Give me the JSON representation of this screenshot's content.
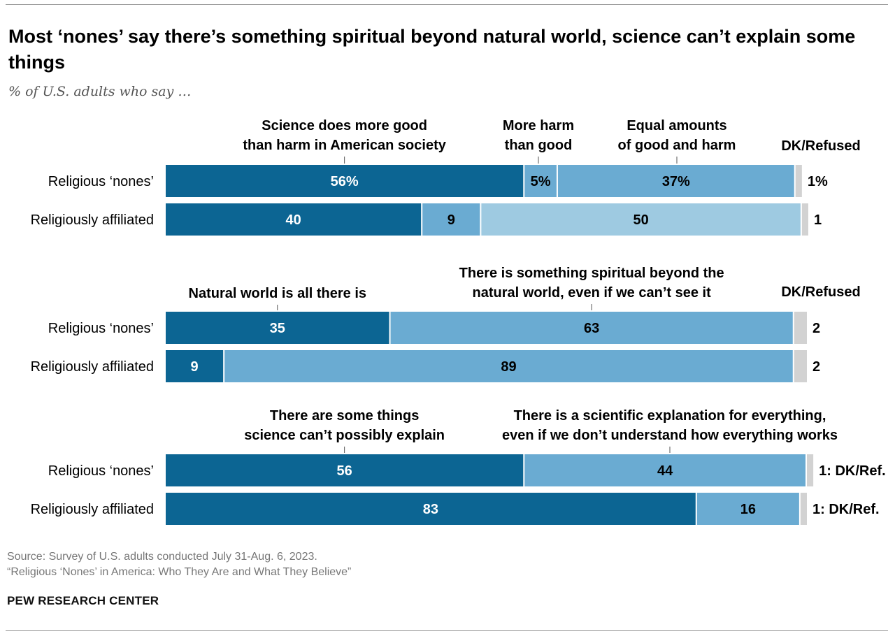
{
  "title": "Most ‘nones’ say there’s something spiritual beyond natural world, science can’t explain some things",
  "subtitle": "% of U.S. adults who say …",
  "source": "Source: Survey of U.S. adults conducted July 31-Aug. 6, 2023.",
  "report": "“Religious ‘Nones’ in America: Who They Are and What They Believe”",
  "brand": "PEW RESEARCH CENTER",
  "colors": {
    "dark": "#0c6593",
    "mid": "#6aabd2",
    "light": "#9ecae1",
    "gray": "#d2d2d2"
  },
  "chart_data": [
    {
      "type": "bar",
      "stacked": true,
      "orientation": "horizontal",
      "categories": [
        "Religious ‘nones’",
        "Religiously affiliated"
      ],
      "series": [
        {
          "name": "Science does more good than harm in American society",
          "values": [
            56,
            40
          ],
          "labels": [
            "56%",
            "40"
          ],
          "color": "dark"
        },
        {
          "name": "More harm than good",
          "values": [
            5,
            9
          ],
          "labels": [
            "5%",
            "9"
          ],
          "color": "mid"
        },
        {
          "name": "Equal amounts of good and harm",
          "values": [
            37,
            50
          ],
          "labels": [
            "37%",
            "50"
          ],
          "color": "mid",
          "color_row2": "light"
        },
        {
          "name": "DK/Refused",
          "values": [
            1,
            1
          ],
          "labels": [
            "1%",
            "1"
          ],
          "color": "gray"
        }
      ]
    },
    {
      "type": "bar",
      "stacked": true,
      "orientation": "horizontal",
      "categories": [
        "Religious ‘nones’",
        "Religiously affiliated"
      ],
      "series": [
        {
          "name": "Natural world is all there is",
          "values": [
            35,
            9
          ],
          "labels": [
            "35",
            "9"
          ],
          "color": "dark"
        },
        {
          "name": "There is something spiritual beyond the natural world, even if we can’t see it",
          "values": [
            63,
            89
          ],
          "labels": [
            "63",
            "89"
          ],
          "color": "mid"
        },
        {
          "name": "DK/Refused",
          "values": [
            2,
            2
          ],
          "labels": [
            "2",
            "2"
          ],
          "color": "gray"
        }
      ]
    },
    {
      "type": "bar",
      "stacked": true,
      "orientation": "horizontal",
      "categories": [
        "Religious ‘nones’",
        "Religiously affiliated"
      ],
      "series": [
        {
          "name": "There are some things science can’t possibly explain",
          "values": [
            56,
            83
          ],
          "labels": [
            "56",
            "83"
          ],
          "color": "dark"
        },
        {
          "name": "There is a scientific explanation for everything, even if we don’t understand how everything works",
          "values": [
            44,
            16
          ],
          "labels": [
            "44",
            "16"
          ],
          "color": "mid"
        },
        {
          "name": "DK/Ref.",
          "values": [
            1,
            1
          ],
          "labels": [
            "1: DK/Ref.",
            "1: DK/Ref."
          ],
          "color": "gray"
        }
      ]
    }
  ]
}
